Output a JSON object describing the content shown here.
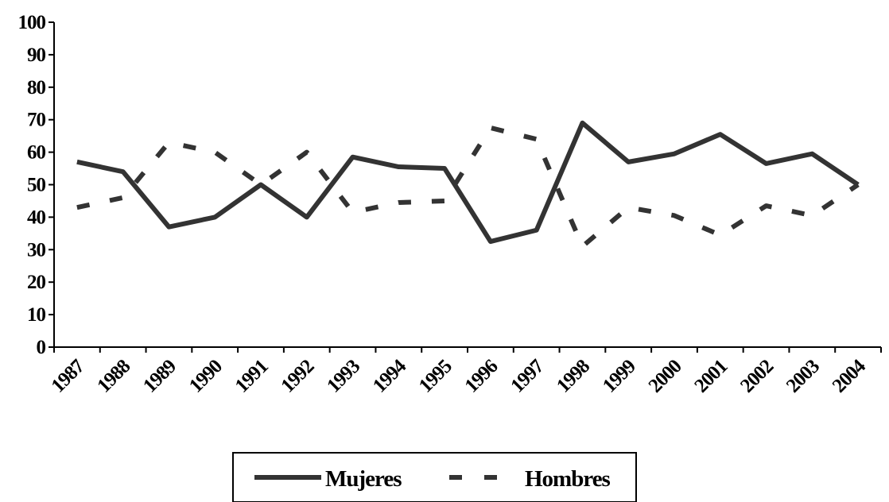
{
  "chart_data": {
    "type": "line",
    "title": "",
    "xlabel": "",
    "ylabel": "",
    "categories": [
      "1987",
      "1988",
      "1989",
      "1990",
      "1991",
      "1992",
      "1993",
      "1994",
      "1995",
      "1996",
      "1997",
      "1998",
      "1999",
      "2000",
      "2001",
      "2002",
      "2003",
      "2004"
    ],
    "ylim": [
      0,
      100
    ],
    "yticks": [
      "0",
      "10",
      "20",
      "30",
      "40",
      "50",
      "60",
      "70",
      "80",
      "90",
      "100"
    ],
    "grid": false,
    "legend": {
      "placement": "bottom-center",
      "entries": [
        "Mujeres",
        "Hombres"
      ]
    },
    "series": [
      {
        "name": "Mujeres",
        "style": "solid",
        "color": "#333333",
        "values": [
          57,
          54,
          37,
          40,
          50,
          40,
          58.5,
          55.5,
          55,
          32.5,
          36,
          69,
          57,
          59.5,
          65.5,
          56.5,
          59.5,
          50
        ]
      },
      {
        "name": "Hombres",
        "style": "dashed",
        "color": "#333333",
        "values": [
          43,
          46,
          63,
          60,
          50,
          60,
          41.5,
          44.5,
          45,
          67.5,
          64,
          31,
          43,
          40.5,
          34.5,
          43.5,
          40.5,
          50
        ]
      }
    ]
  }
}
